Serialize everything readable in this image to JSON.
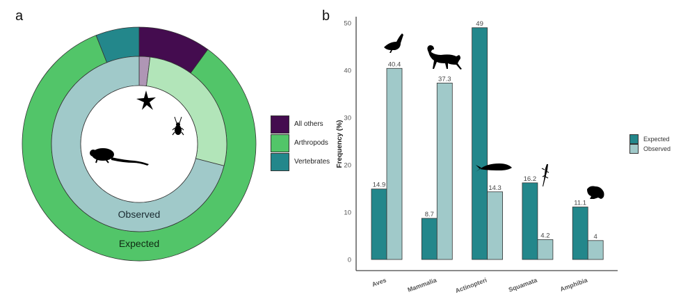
{
  "panels": {
    "a": "a",
    "b": "b"
  },
  "chart_data": [
    {
      "type": "pie",
      "subtype": "nested-donut",
      "title": "",
      "rings": [
        {
          "name": "Expected",
          "position": "outer",
          "slices": [
            {
              "label": "All others",
              "value": 10
            },
            {
              "label": "Arthropods",
              "value": 84
            },
            {
              "label": "Vertebrates",
              "value": 6
            }
          ]
        },
        {
          "name": "Observed",
          "position": "inner",
          "slices": [
            {
              "label": "All others",
              "value": 2
            },
            {
              "label": "Arthropods",
              "value": 27
            },
            {
              "label": "Vertebrates",
              "value": 71
            }
          ]
        }
      ],
      "legend": {
        "placement": "right",
        "entries": [
          {
            "label": "All others",
            "color": "#440c4f",
            "observed_color": "#af96b5"
          },
          {
            "label": "Arthropods",
            "color": "#52c569",
            "observed_color": "#b2e5b9"
          },
          {
            "label": "Vertebrates",
            "color": "#23878b",
            "observed_color": "#a0c9c9"
          }
        ]
      },
      "silhouettes": [
        "starfish-icon",
        "beetle-icon",
        "rodent-icon"
      ]
    },
    {
      "type": "bar",
      "categories": [
        "Aves",
        "Mammalia",
        "Actinopteri",
        "Squamata",
        "Amphibia"
      ],
      "series": [
        {
          "name": "Expected",
          "color": "#23878b",
          "values": [
            14.9,
            8.7,
            49,
            16.2,
            11.1
          ],
          "labels": [
            "14.9",
            "8.7",
            "49",
            "16.2",
            "11.1"
          ]
        },
        {
          "name": "Observed",
          "color": "#a0c9c9",
          "values": [
            40.4,
            37.3,
            14.3,
            4.2,
            4
          ],
          "labels": [
            "40.4",
            "37.3",
            "14.3",
            "4.2",
            "4"
          ]
        }
      ],
      "title": "",
      "xlabel": "",
      "ylabel": "Frequency (%)",
      "ylim": [
        0,
        50
      ],
      "yticks": [
        0,
        10,
        20,
        30,
        40,
        50
      ],
      "grid": false,
      "legend": {
        "placement": "right",
        "entries": [
          "Expected",
          "Observed"
        ]
      },
      "silhouettes": [
        "bird-icon",
        "monkey-icon",
        "fish-icon",
        "lizard-icon",
        "frog-icon"
      ]
    }
  ]
}
